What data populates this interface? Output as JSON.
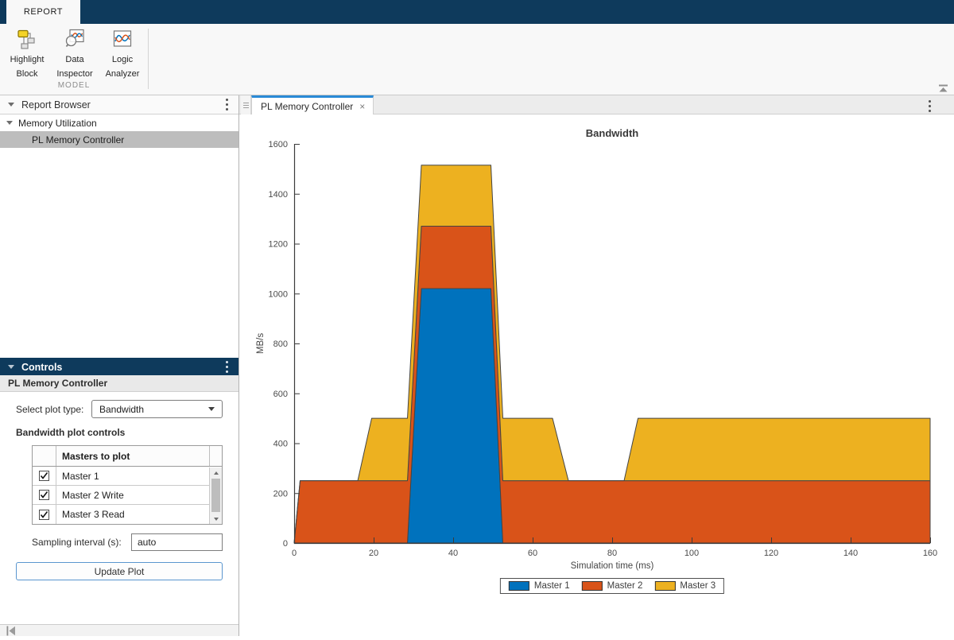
{
  "ribbon": {
    "active_tab": "REPORT",
    "section_label": "MODEL",
    "buttons": [
      {
        "label": "Highlight Block",
        "icon": "highlight-block-icon"
      },
      {
        "label": "Data Inspector",
        "icon": "data-inspector-icon"
      },
      {
        "label": "Logic Analyzer",
        "icon": "logic-analyzer-icon"
      }
    ]
  },
  "report_browser": {
    "title": "Report Browser",
    "group_label": "Memory Utilization",
    "items": [
      {
        "label": "PL Memory Controller",
        "selected": true
      }
    ]
  },
  "controls": {
    "title": "Controls",
    "subtitle": "PL Memory Controller",
    "plot_type_label": "Select plot type:",
    "plot_type_value": "Bandwidth",
    "section_heading": "Bandwidth plot controls",
    "masters_table": {
      "header": "Masters to plot",
      "rows": [
        {
          "label": "Master 1",
          "checked": true
        },
        {
          "label": "Master 2 Write",
          "checked": true
        },
        {
          "label": "Master 3 Read",
          "checked": true
        }
      ]
    },
    "sampling_label": "Sampling interval (s):",
    "sampling_value": "auto",
    "update_button_label": "Update Plot"
  },
  "document": {
    "tab_title": "PL Memory Controller",
    "close_symbol": "×"
  },
  "chart_data": {
    "type": "area",
    "stacked": true,
    "title": "Bandwidth",
    "xlabel": "Simulation time (ms)",
    "ylabel": "MB/s",
    "xlim": [
      0,
      160
    ],
    "ylim": [
      0,
      1600
    ],
    "xticks": [
      0,
      20,
      40,
      60,
      80,
      100,
      120,
      140,
      160
    ],
    "yticks": [
      0,
      200,
      400,
      600,
      800,
      1000,
      1200,
      1400,
      1600
    ],
    "grid": false,
    "legend_position": "below-axes",
    "series": [
      {
        "name": "Master 1",
        "color": "#0072BD",
        "points": [
          [
            0,
            0
          ],
          [
            28.5,
            0
          ],
          [
            32,
            1020
          ],
          [
            49.5,
            1020
          ],
          [
            52.5,
            0
          ],
          [
            160,
            0
          ]
        ]
      },
      {
        "name": "Master 2",
        "color": "#D95319",
        "points": [
          [
            0,
            0
          ],
          [
            1.5,
            250
          ],
          [
            160,
            250
          ]
        ]
      },
      {
        "name": "Master 3",
        "color": "#EDB120",
        "points": [
          [
            0,
            0
          ],
          [
            16,
            0
          ],
          [
            19.5,
            250
          ],
          [
            28.5,
            250
          ],
          [
            32,
            245
          ],
          [
            49.5,
            245
          ],
          [
            52.5,
            250
          ],
          [
            65,
            250
          ],
          [
            69,
            0
          ],
          [
            83,
            0
          ],
          [
            86.5,
            250
          ],
          [
            160,
            250
          ]
        ]
      }
    ]
  },
  "colors": {
    "banner_navy": "#0e3a5c",
    "active_tab_accent": "#2a8ad6",
    "selected_row_gray": "#bdbdbd",
    "master1_blue": "#0072BD",
    "master2_orange": "#D95319",
    "master3_yellow": "#EDB120"
  }
}
